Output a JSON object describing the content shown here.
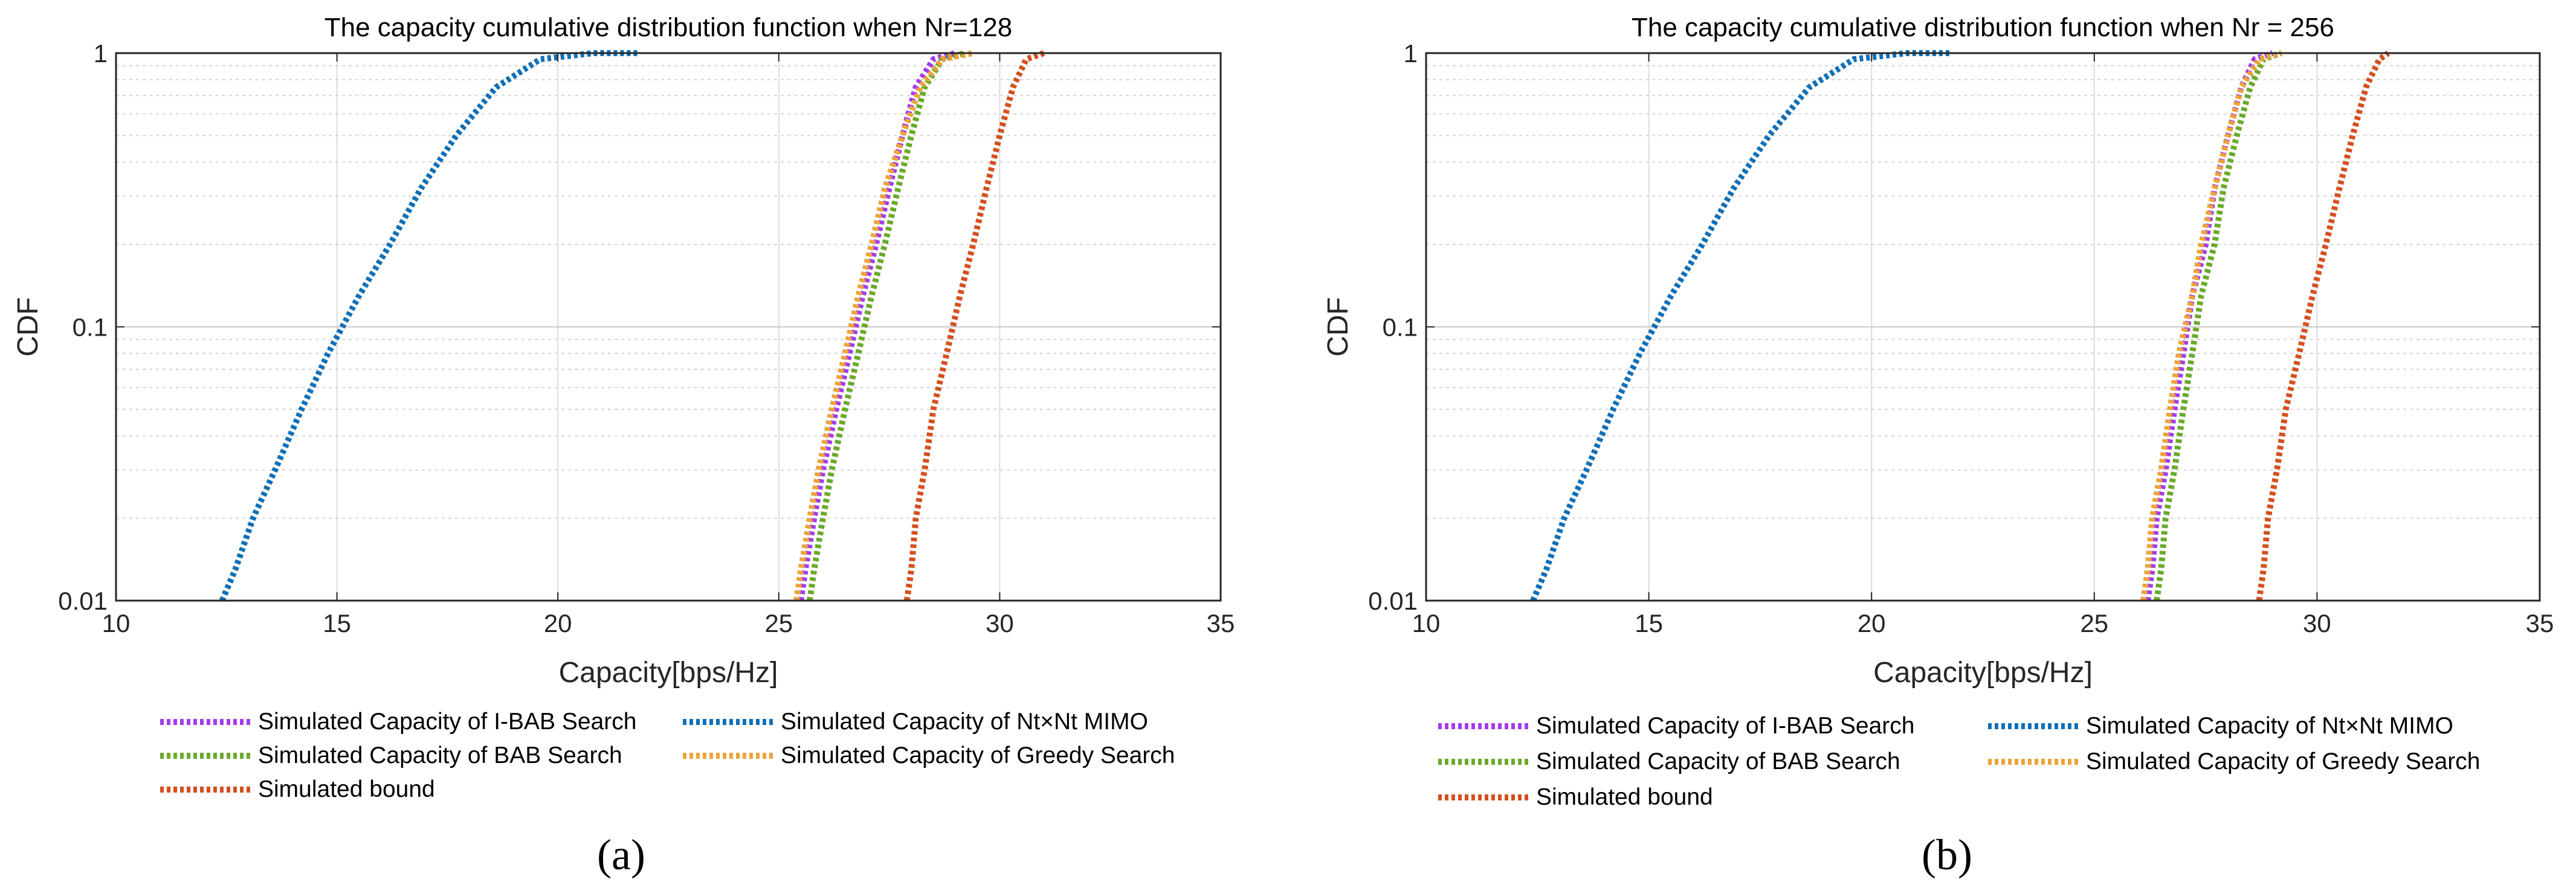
{
  "figure": {
    "panels": [
      {
        "id": "a",
        "panel_label": "(a)",
        "legend_entries": [
          {
            "series": 0,
            "label": "Simulated Capacity of I-BAB Search"
          },
          {
            "series": 1,
            "label": "Simulated Capacity of Nt×Nt MIMO"
          },
          {
            "series": 2,
            "label": "Simulated Capacity of BAB Search"
          },
          {
            "series": 3,
            "label": "Simulated Capacity of Greedy Search"
          },
          {
            "series": 4,
            "label": "Simulated bound"
          }
        ]
      },
      {
        "id": "b",
        "panel_label": "(b)",
        "legend_entries": [
          {
            "series": 0,
            "label": "Simulated Capacity of I-BAB Search"
          },
          {
            "series": 1,
            "label": "Simulated Capacity of Nt×Nt MIMO"
          },
          {
            "series": 2,
            "label": "Simulated Capacity of BAB Search"
          },
          {
            "series": 3,
            "label": "Simulated Capacity of Greedy Search"
          },
          {
            "series": 4,
            "label": "Simulated bound"
          }
        ]
      }
    ]
  },
  "chart_data": [
    {
      "type": "line",
      "title": "The capacity cumulative distribution function when Nr=128",
      "xlabel": "Capacity[bps/Hz]",
      "ylabel": "CDF",
      "xlim": [
        10,
        35
      ],
      "ylim": [
        0.01,
        1
      ],
      "yscale": "log",
      "xticks": [
        10,
        15,
        20,
        25,
        30,
        35
      ],
      "xtick_labels": [
        "10",
        "15",
        "20",
        "25",
        "30",
        "35"
      ],
      "yticks": [
        0.01,
        0.1,
        1
      ],
      "ytick_labels": [
        "0.01",
        "0.1",
        "1"
      ],
      "grid": true,
      "legend_position": "below",
      "series": [
        {
          "name": "Simulated Capacity of I-BAB Search",
          "color": "#A33BEB",
          "style": "dotted",
          "x": [
            25.5,
            25.6,
            25.8,
            26.0,
            26.3,
            26.6,
            26.9,
            27.2,
            27.5,
            27.8,
            28.1,
            28.5,
            29.0
          ],
          "y": [
            0.01,
            0.013,
            0.02,
            0.03,
            0.05,
            0.08,
            0.13,
            0.2,
            0.32,
            0.5,
            0.75,
            0.95,
            1.0
          ]
        },
        {
          "name": "Simulated Capacity of Nt×Nt MIMO",
          "color": "#0F6FB8",
          "style": "dotted",
          "x": [
            12.4,
            12.7,
            13.1,
            13.6,
            14.2,
            14.8,
            15.5,
            16.2,
            16.9,
            17.7,
            18.6,
            19.6,
            20.8,
            21.8
          ],
          "y": [
            0.01,
            0.013,
            0.02,
            0.03,
            0.05,
            0.08,
            0.13,
            0.2,
            0.32,
            0.5,
            0.75,
            0.95,
            1.0,
            1.0
          ]
        },
        {
          "name": "Simulated Capacity of BAB Search",
          "color": "#6AAA2A",
          "style": "dotted",
          "x": [
            25.7,
            25.8,
            26.0,
            26.2,
            26.5,
            26.8,
            27.1,
            27.4,
            27.7,
            28.0,
            28.3,
            28.7,
            29.2
          ],
          "y": [
            0.01,
            0.013,
            0.02,
            0.03,
            0.05,
            0.08,
            0.13,
            0.2,
            0.32,
            0.5,
            0.75,
            0.95,
            1.0
          ]
        },
        {
          "name": "Simulated Capacity of Greedy Search",
          "color": "#EDA33A",
          "style": "dotted",
          "x": [
            25.4,
            25.5,
            25.7,
            25.9,
            26.2,
            26.5,
            26.8,
            27.1,
            27.4,
            27.8,
            28.2,
            28.7,
            29.4
          ],
          "y": [
            0.01,
            0.013,
            0.02,
            0.03,
            0.05,
            0.08,
            0.13,
            0.2,
            0.32,
            0.5,
            0.75,
            0.95,
            1.0
          ]
        },
        {
          "name": "Simulated bound",
          "color": "#D54F1E",
          "style": "dotted",
          "x": [
            27.9,
            28.0,
            28.1,
            28.3,
            28.5,
            28.8,
            29.1,
            29.4,
            29.7,
            30.0,
            30.3,
            30.6,
            31.0
          ],
          "y": [
            0.01,
            0.013,
            0.02,
            0.03,
            0.05,
            0.08,
            0.13,
            0.2,
            0.32,
            0.5,
            0.75,
            0.95,
            1.0
          ]
        }
      ]
    },
    {
      "type": "line",
      "title": "The capacity cumulative distribution function when Nr = 256",
      "xlabel": "Capacity[bps/Hz]",
      "ylabel": "CDF",
      "xlim": [
        10,
        35
      ],
      "ylim": [
        0.01,
        1
      ],
      "yscale": "log",
      "xticks": [
        10,
        15,
        20,
        25,
        30,
        35
      ],
      "xtick_labels": [
        "10",
        "15",
        "20",
        "25",
        "30",
        "35"
      ],
      "yticks": [
        0.01,
        0.1,
        1
      ],
      "ytick_labels": [
        "0.01",
        "0.1",
        "1"
      ],
      "grid": true,
      "legend_position": "below",
      "series": [
        {
          "name": "Simulated Capacity of I-BAB Search",
          "color": "#A33BEB",
          "style": "dotted",
          "x": [
            26.2,
            26.3,
            26.4,
            26.6,
            26.8,
            27.0,
            27.2,
            27.5,
            27.7,
            28.0,
            28.3,
            28.6,
            29.0
          ],
          "y": [
            0.01,
            0.013,
            0.02,
            0.03,
            0.05,
            0.08,
            0.13,
            0.2,
            0.32,
            0.5,
            0.75,
            0.95,
            1.0
          ]
        },
        {
          "name": "Simulated Capacity of Nt×Nt MIMO",
          "color": "#0F6FB8",
          "style": "dotted",
          "x": [
            12.4,
            12.7,
            13.1,
            13.6,
            14.2,
            14.8,
            15.5,
            16.2,
            16.9,
            17.7,
            18.6,
            19.6,
            20.8,
            21.8
          ],
          "y": [
            0.01,
            0.013,
            0.02,
            0.03,
            0.05,
            0.08,
            0.13,
            0.2,
            0.32,
            0.5,
            0.75,
            0.95,
            1.0,
            1.0
          ]
        },
        {
          "name": "Simulated Capacity of BAB Search",
          "color": "#6AAA2A",
          "style": "dotted",
          "x": [
            26.4,
            26.5,
            26.6,
            26.8,
            27.0,
            27.2,
            27.4,
            27.7,
            27.9,
            28.2,
            28.5,
            28.8,
            29.2
          ],
          "y": [
            0.01,
            0.013,
            0.02,
            0.03,
            0.05,
            0.08,
            0.13,
            0.2,
            0.32,
            0.5,
            0.75,
            0.95,
            1.0
          ]
        },
        {
          "name": "Simulated Capacity of Greedy Search",
          "color": "#EDA33A",
          "style": "dotted",
          "x": [
            26.1,
            26.2,
            26.3,
            26.5,
            26.7,
            26.9,
            27.2,
            27.4,
            27.7,
            28.0,
            28.3,
            28.7,
            29.2
          ],
          "y": [
            0.01,
            0.013,
            0.02,
            0.03,
            0.05,
            0.08,
            0.13,
            0.2,
            0.32,
            0.5,
            0.75,
            0.95,
            1.0
          ]
        },
        {
          "name": "Simulated bound",
          "color": "#D54F1E",
          "style": "dotted",
          "x": [
            28.7,
            28.8,
            28.9,
            29.1,
            29.3,
            29.6,
            29.9,
            30.2,
            30.5,
            30.8,
            31.1,
            31.4,
            31.6
          ],
          "y": [
            0.01,
            0.013,
            0.02,
            0.03,
            0.05,
            0.08,
            0.13,
            0.2,
            0.32,
            0.5,
            0.75,
            0.95,
            1.0
          ]
        }
      ]
    }
  ]
}
